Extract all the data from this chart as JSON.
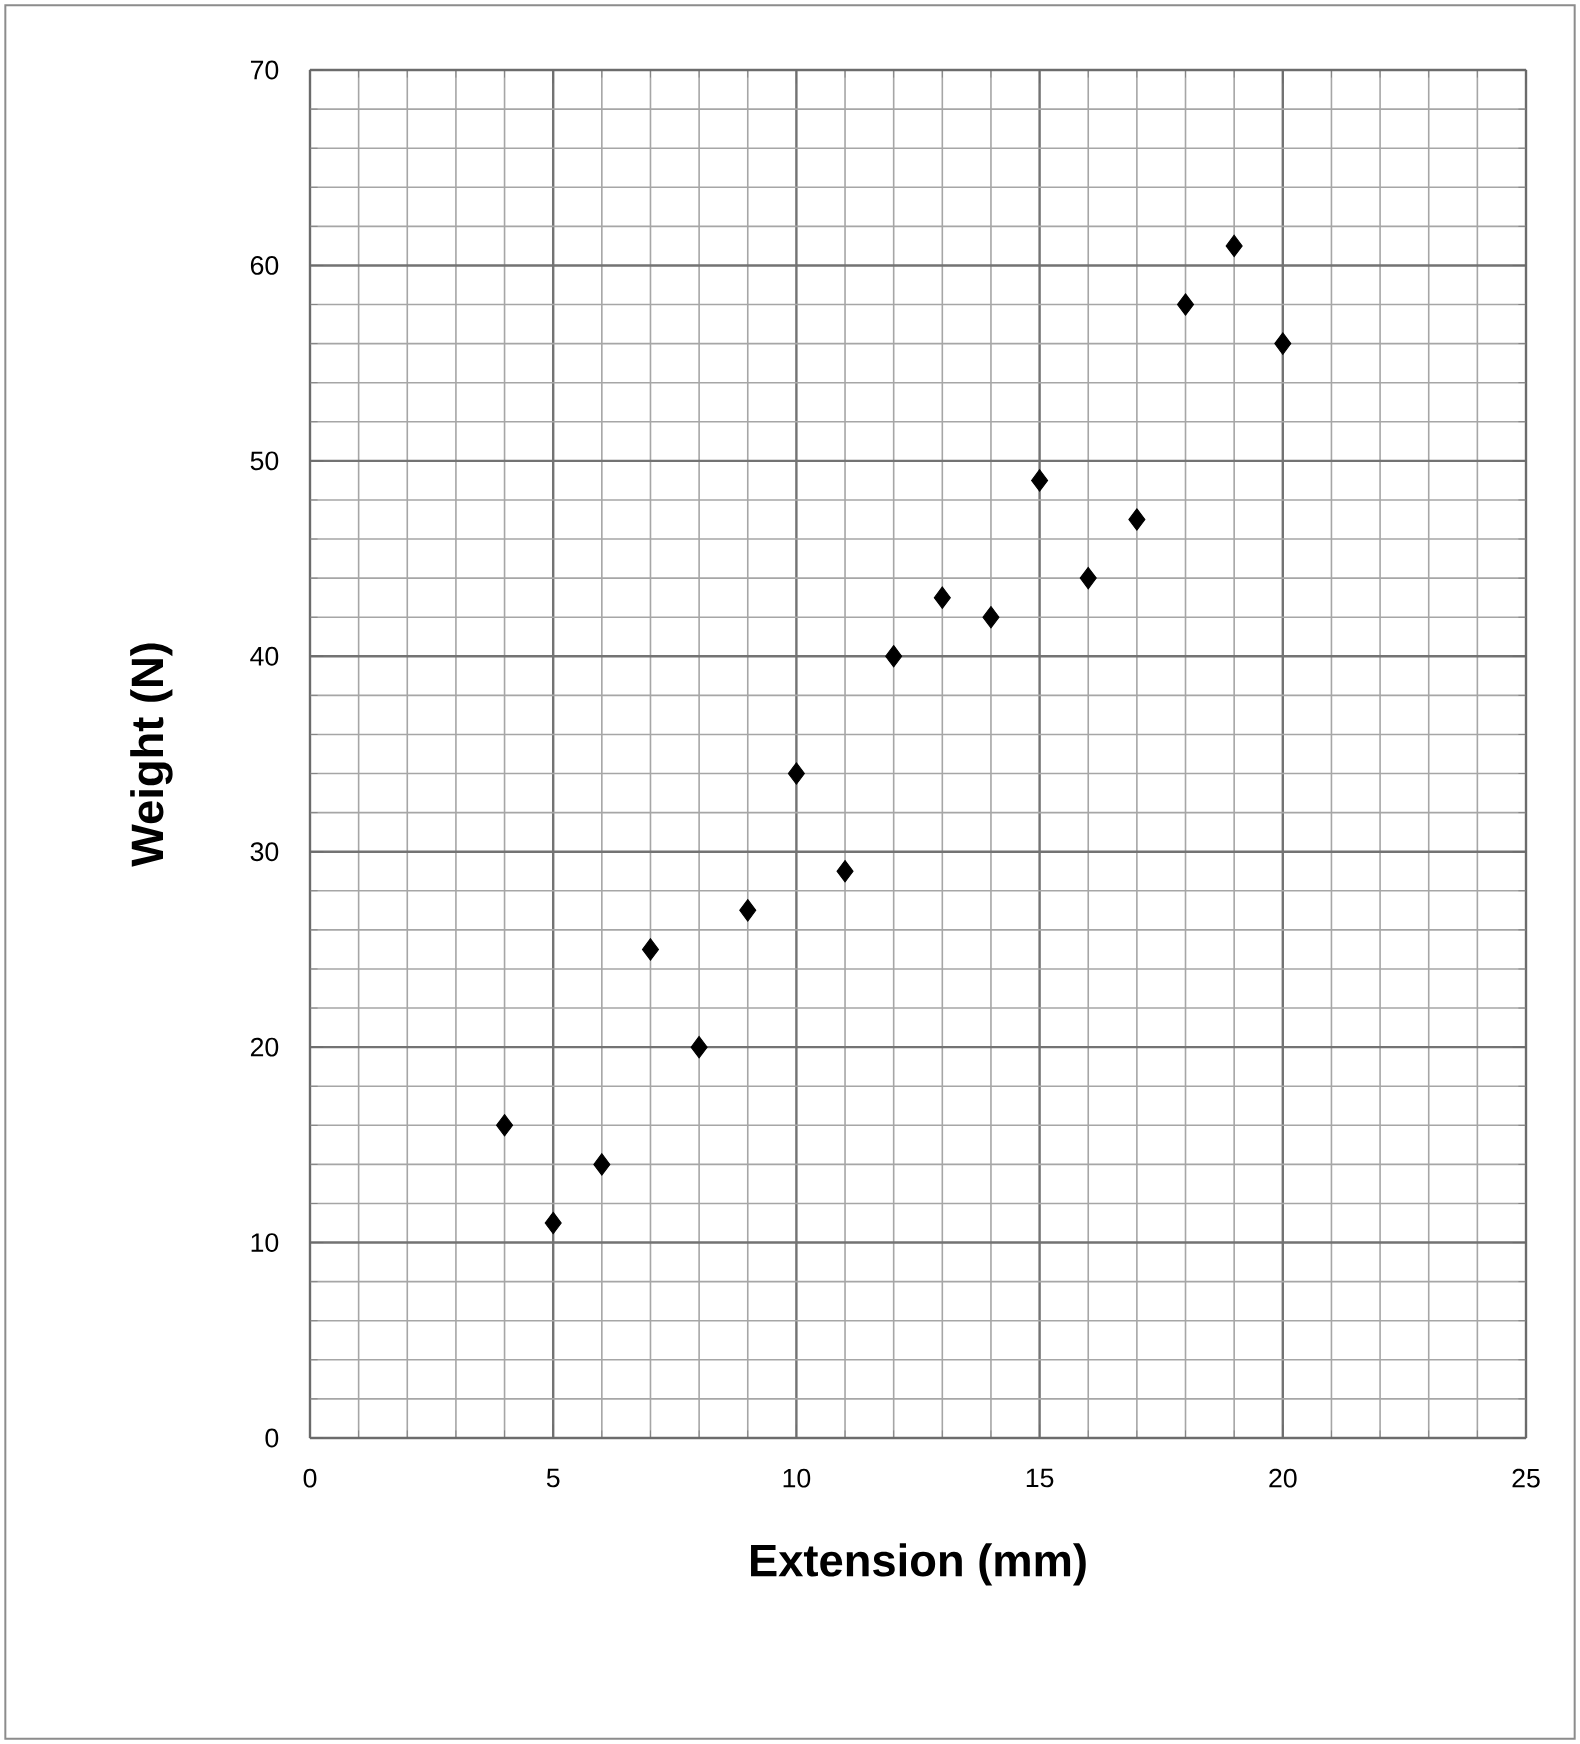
{
  "chart_data": {
    "type": "scatter",
    "xlabel": "Extension (mm)",
    "ylabel": "Weight (N)",
    "x": [
      4,
      5,
      6,
      7,
      8,
      9,
      10,
      11,
      12,
      13,
      14,
      15,
      16,
      17,
      18,
      19,
      20
    ],
    "values": [
      16,
      11,
      14,
      25,
      20,
      27,
      34,
      29,
      40,
      43,
      42,
      49,
      44,
      47,
      58,
      61,
      56
    ],
    "color": "#000000",
    "marker": "diamond",
    "xlim": [
      0,
      25
    ],
    "ylim": [
      0,
      70
    ],
    "xticks": [
      0,
      5,
      10,
      15,
      20,
      25
    ],
    "yticks": [
      0,
      10,
      20,
      30,
      40,
      50,
      60,
      70
    ],
    "grid": true
  }
}
